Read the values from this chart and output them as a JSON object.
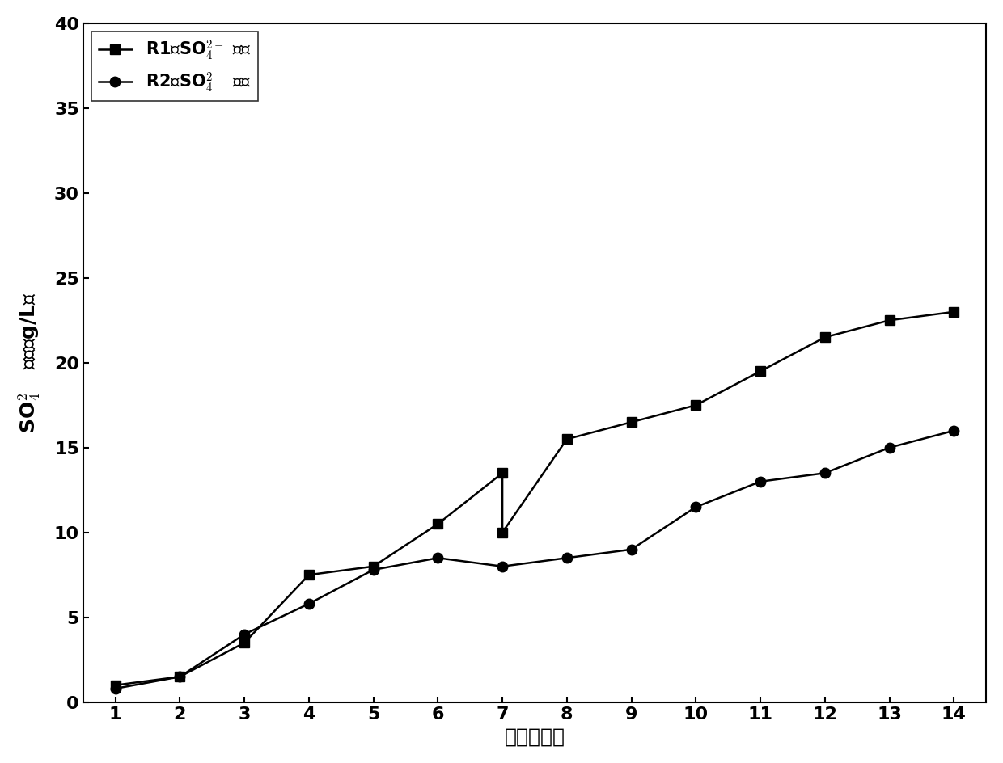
{
  "r1_x": [
    1,
    2,
    3,
    4,
    5,
    6,
    7,
    7,
    8,
    9,
    10,
    11,
    12,
    13,
    14
  ],
  "r1_y": [
    1.0,
    1.5,
    3.5,
    7.5,
    8.0,
    10.5,
    13.5,
    10.0,
    15.5,
    16.5,
    17.5,
    19.5,
    21.5,
    22.5,
    23.0
  ],
  "r2_x": [
    1,
    2,
    3,
    4,
    5,
    6,
    7,
    8,
    9,
    10,
    11,
    12,
    13,
    14
  ],
  "r2_y": [
    0.8,
    1.5,
    4.0,
    5.8,
    7.8,
    8.5,
    8.0,
    8.5,
    9.0,
    11.5,
    13.0,
    13.5,
    15.0,
    16.0
  ],
  "r1_label": "R1的SO$_4^{2-}$ 浓度",
  "r2_label": "R2的SO$_4^{2-}$ 浓度",
  "xlabel": "时间（天）",
  "ylabel_line1": "SO$_4^{2-}$ 浓度（g/L）",
  "xlim": [
    0.5,
    14.5
  ],
  "ylim": [
    0,
    40
  ],
  "xticks": [
    1,
    2,
    3,
    4,
    5,
    6,
    7,
    8,
    9,
    10,
    11,
    12,
    13,
    14
  ],
  "yticks": [
    0,
    5,
    10,
    15,
    20,
    25,
    30,
    35,
    40
  ],
  "line_color": "#000000",
  "marker_r1": "s",
  "marker_r2": "o",
  "marker_size": 9,
  "linewidth": 1.8,
  "axis_fontsize": 18,
  "tick_fontsize": 16,
  "legend_fontsize": 15
}
